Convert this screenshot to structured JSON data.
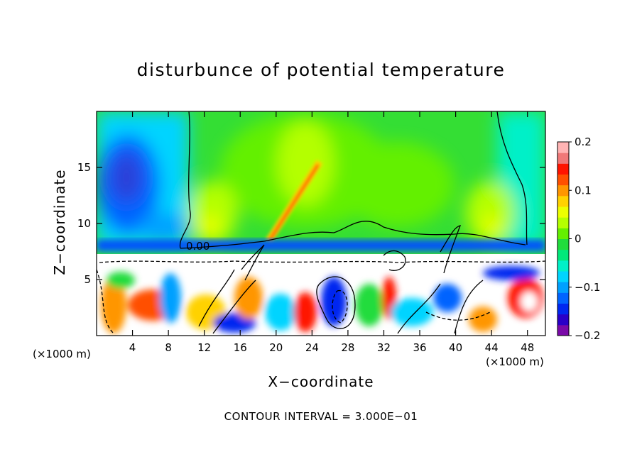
{
  "chart_data": {
    "type": "heatmap",
    "title": "disturbunce of potential temperature",
    "xlabel": "X−coordinate",
    "ylabel": "Z−coordinate",
    "x_unit": "(×1000 m)",
    "x_unit_right": "(×1000 m)",
    "footer": "CONTOUR INTERVAL = 3.000E−01",
    "xlim": [
      0,
      50
    ],
    "ylim": [
      0,
      20
    ],
    "x_ticks": [
      4,
      8,
      12,
      16,
      20,
      24,
      28,
      32,
      36,
      40,
      44,
      48
    ],
    "x_tick_labels": [
      "4",
      "8",
      "12",
      "16",
      "20",
      "24",
      "28",
      "32",
      "36",
      "40",
      "44",
      "48"
    ],
    "y_ticks": [
      5,
      10,
      15
    ],
    "y_tick_labels": [
      "5",
      "10",
      "15"
    ],
    "contour_label": "0.00",
    "colorbar": {
      "range": [
        -0.2,
        0.2
      ],
      "tick_values": [
        0.2,
        0.1,
        0,
        -0.1,
        -0.2
      ],
      "tick_labels": [
        "0.2",
        "0.1",
        "0",
        "−0.1",
        "−0.2"
      ],
      "colors": [
        "#7a0aa8",
        "#2a00c8",
        "#0028f0",
        "#0064ff",
        "#00a0ff",
        "#00d4ff",
        "#00f0c8",
        "#00e87a",
        "#20dc3c",
        "#64f000",
        "#b4ff00",
        "#ecff00",
        "#ffd200",
        "#ff9600",
        "#ff5000",
        "#ff1400",
        "#f07878",
        "#ffb4b4"
      ]
    }
  }
}
